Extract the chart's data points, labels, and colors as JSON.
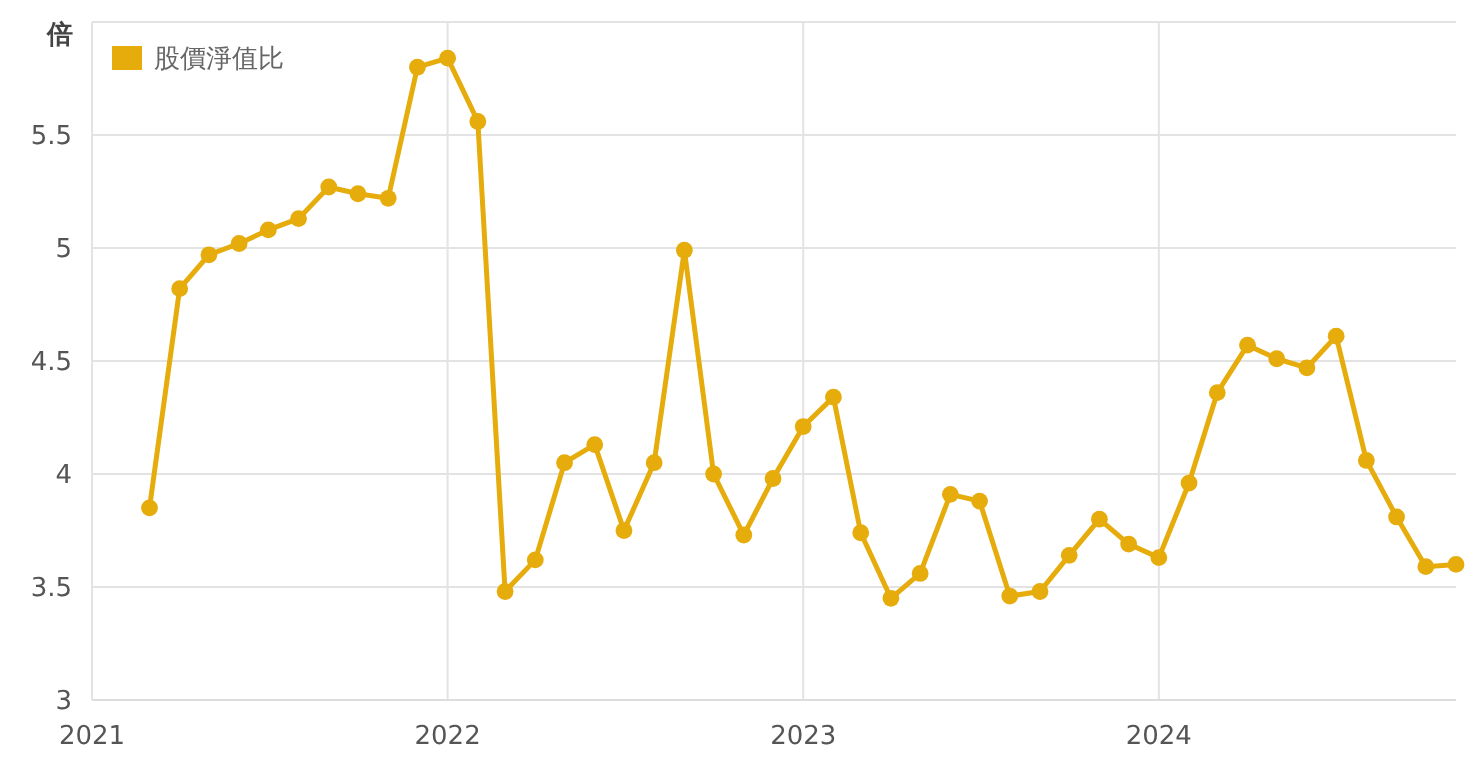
{
  "chart_data": {
    "type": "line",
    "ylabel": "倍",
    "legend": "top left",
    "grid": true,
    "marker": "circle",
    "line_style": "solid",
    "xlim": [
      "2021-01",
      "2024-11"
    ],
    "xticks": [
      {
        "value": "2021-01",
        "label": "2021"
      },
      {
        "value": "2022-01",
        "label": "2022"
      },
      {
        "value": "2023-01",
        "label": "2023"
      },
      {
        "value": "2024-01",
        "label": "2024"
      }
    ],
    "ylim": [
      3,
      6
    ],
    "yticks": [
      3,
      3.5,
      4,
      4.5,
      5,
      5.5,
      {
        "value": 6,
        "label": null
      }
    ],
    "x": [
      "2021-03",
      "2021-04",
      "2021-05",
      "2021-06",
      "2021-07",
      "2021-08",
      "2021-09",
      "2021-10",
      "2021-11",
      "2021-12",
      "2022-01",
      "2022-02",
      "2022-03",
      "2022-04",
      "2022-05",
      "2022-06",
      "2022-07",
      "2022-08",
      "2022-09",
      "2022-10",
      "2022-11",
      "2022-12",
      "2023-01",
      "2023-02",
      "2023-03",
      "2023-04",
      "2023-05",
      "2023-06",
      "2023-07",
      "2023-08",
      "2023-09",
      "2023-10",
      "2023-11",
      "2023-12",
      "2024-01",
      "2024-02",
      "2024-03",
      "2024-04",
      "2024-05",
      "2024-06",
      "2024-07",
      "2024-08",
      "2024-09",
      "2024-10",
      "2024-11"
    ],
    "series": [
      {
        "name": "股價淨值比",
        "color": "#e6ac0c",
        "values": [
          3.85,
          4.82,
          4.97,
          5.02,
          5.08,
          5.13,
          5.27,
          5.24,
          5.22,
          5.8,
          5.84,
          5.56,
          3.48,
          3.62,
          4.05,
          4.13,
          3.75,
          4.05,
          4.99,
          4.0,
          3.73,
          3.98,
          4.21,
          4.34,
          3.74,
          3.45,
          3.56,
          3.91,
          3.88,
          3.46,
          3.48,
          3.64,
          3.8,
          3.69,
          3.63,
          3.96,
          4.36,
          4.57,
          4.51,
          4.47,
          4.61,
          4.06,
          3.81,
          3.59,
          3.6
        ]
      }
    ]
  }
}
